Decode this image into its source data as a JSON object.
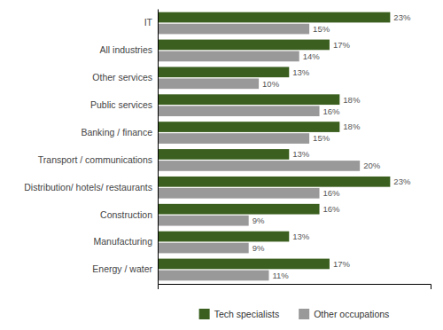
{
  "chart_data": {
    "type": "bar",
    "orientation": "horizontal",
    "categories": [
      "IT",
      "All industries",
      "Other services",
      "Public services",
      "Banking / finance",
      "Transport / communications",
      "Distribution/ hotels/ restaurants",
      "Construction",
      "Manufacturing",
      "Energy / water"
    ],
    "series": [
      {
        "name": "Tech specialists",
        "color": "#3a5f1e",
        "values": [
          23,
          17,
          13,
          18,
          18,
          13,
          23,
          16,
          13,
          17
        ],
        "value_labels": [
          "23%",
          "17%",
          "13%",
          "18%",
          "18%",
          "13%",
          "23%",
          "16%",
          "13%",
          "17%"
        ]
      },
      {
        "name": "Other occupations",
        "color": "#999999",
        "values": [
          15,
          14,
          10,
          16,
          15,
          20,
          16,
          9,
          9,
          11
        ],
        "value_labels": [
          "15%",
          "14%",
          "10%",
          "16%",
          "15%",
          "20%",
          "16%",
          "9%",
          "9%",
          "11%"
        ]
      }
    ],
    "xlim": [
      0,
      27
    ],
    "xticks": [],
    "grid": false,
    "legend": "bottom",
    "data_labels": true,
    "tick_labels": "y"
  }
}
